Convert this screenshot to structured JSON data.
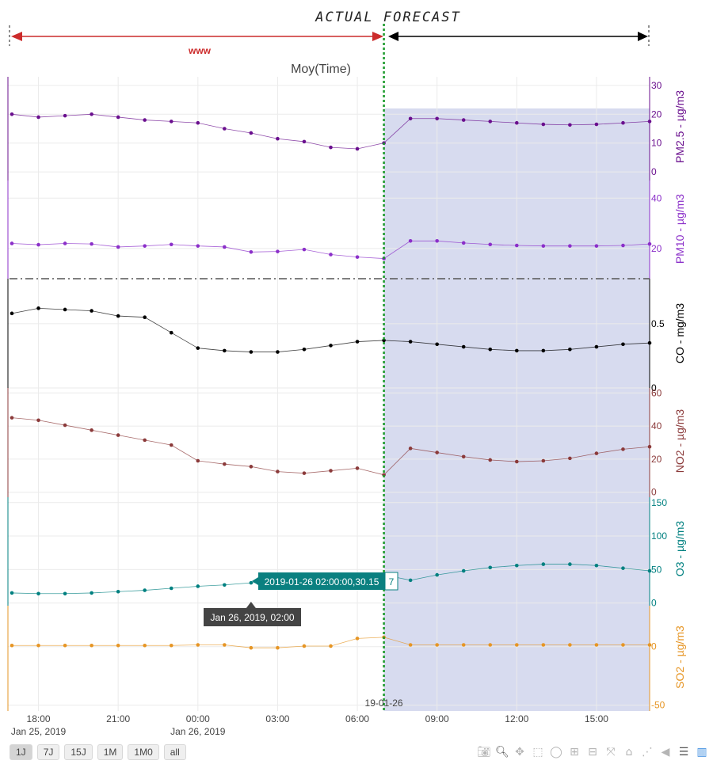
{
  "chart_data": {
    "type": "line",
    "title": "Moy(Time)",
    "annotation_actual_forecast": "ACTUAL FORECAST",
    "annotation_www": "www",
    "separator_time": "2019-01-26 07:00",
    "separator_label": "19-01-26",
    "forecast_region": [
      "2019-01-26 07:00",
      "2019-01-26 17:00"
    ],
    "x": [
      "2019-01-25 17:00",
      "2019-01-25 18:00",
      "2019-01-25 19:00",
      "2019-01-25 20:00",
      "2019-01-25 21:00",
      "2019-01-25 22:00",
      "2019-01-25 23:00",
      "2019-01-26 00:00",
      "2019-01-26 01:00",
      "2019-01-26 02:00",
      "2019-01-26 03:00",
      "2019-01-26 04:00",
      "2019-01-26 05:00",
      "2019-01-26 06:00",
      "2019-01-26 07:00",
      "2019-01-26 08:00",
      "2019-01-26 09:00",
      "2019-01-26 10:00",
      "2019-01-26 11:00",
      "2019-01-26 12:00",
      "2019-01-26 13:00",
      "2019-01-26 14:00",
      "2019-01-26 15:00",
      "2019-01-26 16:00",
      "2019-01-26 17:00"
    ],
    "x_ticks": [
      {
        "t": "2019-01-25 18:00",
        "label": "18:00",
        "sub": "Jan 25, 2019"
      },
      {
        "t": "2019-01-25 21:00",
        "label": "21:00",
        "sub": ""
      },
      {
        "t": "2019-01-26 00:00",
        "label": "00:00",
        "sub": "Jan 26, 2019"
      },
      {
        "t": "2019-01-26 03:00",
        "label": "03:00",
        "sub": ""
      },
      {
        "t": "2019-01-26 06:00",
        "label": "06:00",
        "sub": ""
      },
      {
        "t": "2019-01-26 09:00",
        "label": "09:00",
        "sub": ""
      },
      {
        "t": "2019-01-26 12:00",
        "label": "12:00",
        "sub": ""
      },
      {
        "t": "2019-01-26 15:00",
        "label": "15:00",
        "sub": ""
      }
    ],
    "series": [
      {
        "name": "PM2.5",
        "axis_label": "PM2.5 - µg/m3",
        "color": "#6a0f8e",
        "ylim": [
          -3,
          33
        ],
        "ticks": [
          0,
          10,
          20,
          30
        ],
        "values": [
          20,
          19,
          19.5,
          20,
          19,
          18,
          17.5,
          17,
          15,
          13.5,
          11.5,
          10.5,
          8.5,
          8,
          10,
          18.5,
          18.5,
          18,
          17.5,
          17,
          16.5,
          16.3,
          16.5,
          17,
          17.5
        ]
      },
      {
        "name": "PM10",
        "axis_label": "PM10 - µg/m3",
        "color": "#8b2fc9",
        "ylim": [
          8,
          47
        ],
        "ticks": [
          20,
          40
        ],
        "values": [
          22,
          21.5,
          22,
          21.8,
          20.6,
          21,
          21.6,
          21,
          20.6,
          18.6,
          18.8,
          19.6,
          17.6,
          16.6,
          16,
          23,
          23,
          22.2,
          21.6,
          21.2,
          21,
          21,
          21,
          21.2,
          21.8
        ]
      },
      {
        "name": "CO",
        "axis_label": "CO - mg/m3",
        "color": "#000000",
        "ylim": [
          0,
          0.85
        ],
        "ticks": [
          0,
          0.5
        ],
        "values": [
          0.58,
          0.62,
          0.61,
          0.6,
          0.56,
          0.55,
          0.43,
          0.31,
          0.29,
          0.28,
          0.28,
          0.3,
          0.33,
          0.36,
          0.37,
          0.36,
          0.34,
          0.32,
          0.3,
          0.29,
          0.29,
          0.3,
          0.32,
          0.34,
          0.35
        ]
      },
      {
        "name": "NO2",
        "axis_label": "NO2 - µg/m3",
        "color": "#8b3a3a",
        "ylim": [
          -3,
          63
        ],
        "ticks": [
          0,
          20,
          40,
          60
        ],
        "values": [
          45,
          43.5,
          40.5,
          37.5,
          34.5,
          31.5,
          28.5,
          19,
          17,
          15.5,
          12.5,
          11.5,
          13,
          14.5,
          10.5,
          26.5,
          24,
          21.5,
          19.5,
          18.5,
          19,
          20.5,
          23.5,
          26,
          27.5
        ]
      },
      {
        "name": "O3",
        "axis_label": "O3 - µg/m3",
        "color": "#008080",
        "ylim": [
          -4,
          158
        ],
        "ticks": [
          0,
          50,
          100,
          150
        ],
        "values": [
          15,
          14,
          14,
          15,
          17,
          19,
          22,
          25,
          27,
          30.15,
          33,
          36,
          38,
          40,
          42,
          34,
          42,
          48,
          53,
          56,
          58,
          58,
          56,
          52,
          48
        ]
      },
      {
        "name": "SO2",
        "axis_label": "SO2 - µg/m3",
        "color": "#e69524",
        "ylim": [
          -55,
          35
        ],
        "ticks": [
          -50,
          0
        ],
        "values": [
          1,
          1,
          1,
          1,
          1,
          1,
          1,
          1.5,
          1.5,
          -1,
          -1,
          0.5,
          0.5,
          7,
          8,
          1.5,
          1.5,
          1.5,
          1.5,
          1.5,
          1.5,
          1.5,
          1.5,
          1.5,
          1.5
        ]
      }
    ],
    "hover": {
      "label": "2019-01-26 02:00:00,30.15",
      "extra": "7",
      "time_label": "Jan 26, 2019, 02:00"
    }
  },
  "range_selector": [
    "1J",
    "7J",
    "15J",
    "1M",
    "1M0",
    "all"
  ],
  "modebar_icons": [
    "camera-icon",
    "zoom-icon",
    "pan-icon",
    "box-select-icon",
    "lasso-icon",
    "zoom-in-icon",
    "zoom-out-icon",
    "autoscale-icon",
    "reset-axes-icon",
    "spike-lines-icon",
    "hover-closest-icon",
    "hover-compare-icon",
    "plotly-logo-icon"
  ]
}
